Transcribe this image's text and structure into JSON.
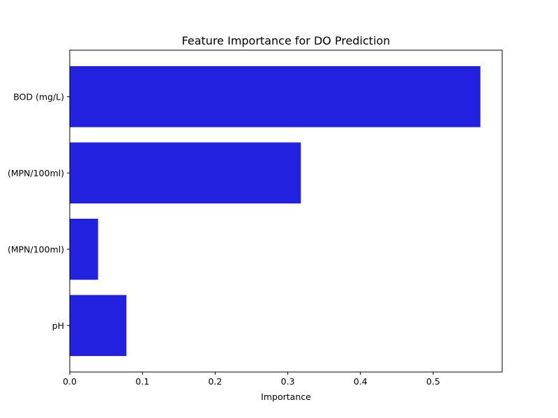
{
  "chart_data": {
    "type": "bar",
    "orientation": "horizontal",
    "title": "Feature Importance for DO Prediction",
    "xlabel": "Importance",
    "ylabel": "",
    "categories": [
      "BOD (mg/L)",
      "(MPN/100ml)",
      "(MPN/100ml)",
      "pH"
    ],
    "values": [
      0.565,
      0.318,
      0.039,
      0.078
    ],
    "xlim": [
      0,
      0.595
    ],
    "xticks": [
      0.0,
      0.1,
      0.2,
      0.3,
      0.4,
      0.5
    ],
    "xtick_labels": [
      "0.0",
      "0.1",
      "0.2",
      "0.3",
      "0.4",
      "0.5"
    ],
    "bar_color": "#2121df",
    "grid": false,
    "legend": "none"
  }
}
